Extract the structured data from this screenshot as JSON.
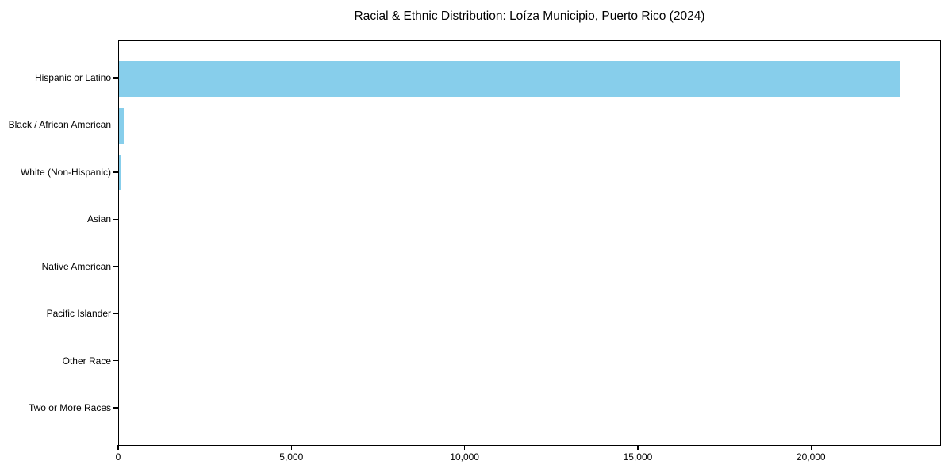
{
  "title": "Racial & Ethnic Distribution: Loíza Municipio, Puerto Rico (2024)",
  "chart_data": {
    "type": "bar",
    "orientation": "horizontal",
    "title": "Racial & Ethnic Distribution: Loíza Municipio, Puerto Rico (2024)",
    "categories": [
      "Hispanic or Latino",
      "Black / African American",
      "White (Non-Hispanic)",
      "Asian",
      "Native American",
      "Pacific Islander",
      "Other Race",
      "Two or More Races"
    ],
    "values": [
      22600,
      130,
      40,
      0,
      0,
      0,
      0,
      0
    ],
    "xlabel": "",
    "ylabel": "",
    "xlim": [
      0,
      23750
    ],
    "xticks": {
      "values": [
        0,
        5000,
        10000,
        15000,
        20000
      ],
      "labels": [
        "0",
        "5,000",
        "10,000",
        "15,000",
        "20,000"
      ]
    },
    "bar_color": "#87CEEB",
    "axis_color": "#000000",
    "background": "#FFFFFF",
    "grid": false,
    "legend": null
  }
}
